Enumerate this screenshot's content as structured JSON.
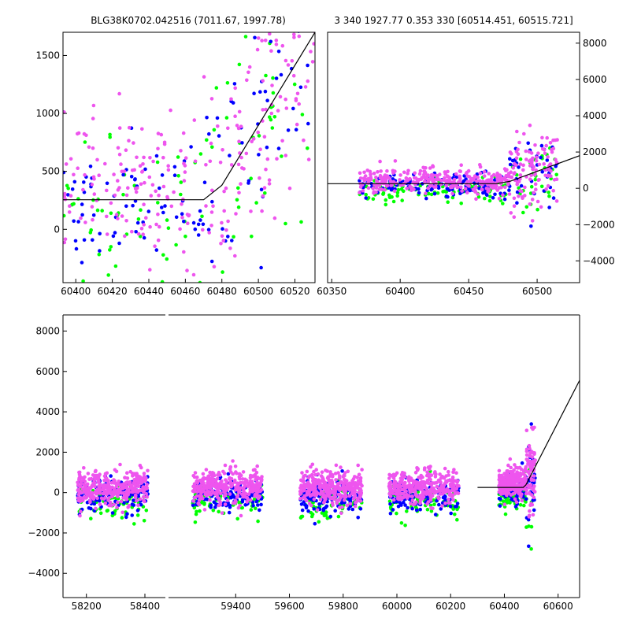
{
  "figure": {
    "title_left": "BLG38K0702.042516 (7011.67, 1997.78)",
    "title_right": "3 340 1927.77 0.353 330 [60514.451, 60515.721]"
  },
  "colors": {
    "green": "#00ff00",
    "blue": "#0000ff",
    "magenta": "#ee55ee",
    "model": "#000000"
  },
  "chart_data": [
    {
      "id": "zoom-left",
      "type": "scatter",
      "xlim": [
        60393,
        60531
      ],
      "ylim": [
        -460,
        1700
      ],
      "xticks": [
        60400,
        60420,
        60440,
        60460,
        60480,
        60500,
        60520
      ],
      "yticks": [
        0,
        500,
        1000,
        1500
      ],
      "model_line": [
        [
          60393,
          255
        ],
        [
          60470,
          255
        ],
        [
          60480,
          380
        ],
        [
          60531,
          1700
        ]
      ],
      "point_counts": {
        "magenta": 260,
        "blue": 120,
        "green": 90
      }
    },
    {
      "id": "zoom-right",
      "type": "scatter",
      "xlim": [
        60347,
        60531
      ],
      "ylim": [
        -5200,
        8600
      ],
      "xticks": [
        60350,
        60400,
        60450,
        60500
      ],
      "yticks": [
        -4000,
        -2000,
        0,
        2000,
        4000,
        6000,
        8000
      ],
      "yaxis_side": "right",
      "model_line": [
        [
          60347,
          255
        ],
        [
          60470,
          255
        ],
        [
          60480,
          380
        ],
        [
          60531,
          1800
        ]
      ],
      "point_counts": {
        "magenta": 420,
        "blue": 170,
        "green": 130
      }
    },
    {
      "id": "full",
      "type": "scatter",
      "broken_x_axis": true,
      "xlim_segment_1": [
        58120,
        58470
      ],
      "xlim_segment_2": [
        59150,
        60680
      ],
      "ylim": [
        -5200,
        8800
      ],
      "xticks_segment_1": [
        58200,
        58400
      ],
      "xticks_segment_2": [
        59400,
        59600,
        59800,
        60000,
        60200,
        60400,
        60600
      ],
      "yticks": [
        -4000,
        -2000,
        0,
        2000,
        4000,
        6000,
        8000
      ],
      "seasons": [
        [
          58170,
          58410
        ],
        [
          59240,
          59500
        ],
        [
          59640,
          59870
        ],
        [
          59970,
          60230
        ],
        [
          60380,
          60515
        ]
      ],
      "model_line": [
        [
          60300,
          255
        ],
        [
          60470,
          255
        ],
        [
          60480,
          380
        ],
        [
          60680,
          5560
        ]
      ],
      "point_counts_per_season": {
        "magenta": 320,
        "blue": 130,
        "green": 80
      }
    }
  ]
}
